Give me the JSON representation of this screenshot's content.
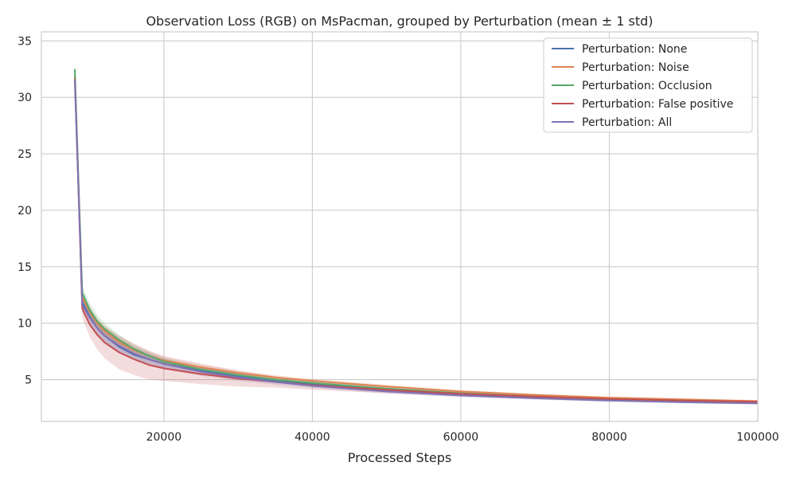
{
  "chart_data": {
    "type": "line",
    "title": "Observation Loss (RGB) on MsPacman, grouped by Perturbation (mean ± 1 std)",
    "xlabel": "Processed Steps",
    "ylabel": "",
    "xlim": [
      3500,
      100000
    ],
    "ylim": [
      1.3,
      35.8
    ],
    "x_ticks": [
      20000,
      40000,
      60000,
      80000,
      100000
    ],
    "x_tick_labels": [
      "20000",
      "40000",
      "60000",
      "80000",
      "100000"
    ],
    "y_ticks": [
      5,
      10,
      15,
      20,
      25,
      30,
      35
    ],
    "y_tick_labels": [
      "5",
      "10",
      "15",
      "20",
      "25",
      "30",
      "35"
    ],
    "grid": true,
    "legend_position": "top-right",
    "x": [
      8000,
      8500,
      9000,
      10000,
      11000,
      12000,
      14000,
      16000,
      18000,
      20000,
      25000,
      30000,
      35000,
      40000,
      50000,
      60000,
      70000,
      80000,
      90000,
      100000
    ],
    "series": [
      {
        "name": "Perturbation: None",
        "color": "#4c72b0",
        "values": [
          31.8,
          22.0,
          11.9,
          10.6,
          9.6,
          8.9,
          7.9,
          7.2,
          6.8,
          6.4,
          5.8,
          5.3,
          4.9,
          4.6,
          4.1,
          3.7,
          3.4,
          3.2,
          3.05,
          2.95
        ],
        "std": [
          0.5,
          0.8,
          0.5,
          0.5,
          0.5,
          0.5,
          0.5,
          0.45,
          0.4,
          0.35,
          0.3,
          0.25,
          0.2,
          0.2,
          0.15,
          0.15,
          0.12,
          0.12,
          0.1,
          0.1
        ]
      },
      {
        "name": "Perturbation: Noise",
        "color": "#dd8452",
        "values": [
          31.9,
          22.2,
          12.3,
          11.0,
          10.0,
          9.3,
          8.3,
          7.6,
          7.1,
          6.7,
          6.1,
          5.6,
          5.2,
          4.9,
          4.4,
          3.95,
          3.65,
          3.4,
          3.25,
          3.1
        ],
        "std": [
          0.5,
          0.8,
          0.5,
          0.5,
          0.5,
          0.5,
          0.45,
          0.4,
          0.35,
          0.3,
          0.25,
          0.22,
          0.2,
          0.18,
          0.15,
          0.13,
          0.12,
          0.1,
          0.1,
          0.1
        ]
      },
      {
        "name": "Perturbation: Occlusion",
        "color": "#55a868",
        "values": [
          32.5,
          22.6,
          12.7,
          11.2,
          10.2,
          9.5,
          8.5,
          7.7,
          7.1,
          6.6,
          5.9,
          5.4,
          5.0,
          4.7,
          4.2,
          3.8,
          3.5,
          3.25,
          3.1,
          3.0
        ],
        "std": [
          1.0,
          0.9,
          0.6,
          0.6,
          0.55,
          0.5,
          0.45,
          0.4,
          0.35,
          0.3,
          0.25,
          0.22,
          0.2,
          0.18,
          0.15,
          0.13,
          0.12,
          0.1,
          0.1,
          0.1
        ]
      },
      {
        "name": "Perturbation: False positive",
        "color": "#c44e52",
        "values": [
          31.6,
          21.8,
          11.3,
          9.9,
          9.0,
          8.3,
          7.4,
          6.8,
          6.3,
          6.0,
          5.5,
          5.1,
          4.8,
          4.5,
          4.1,
          3.75,
          3.5,
          3.3,
          3.15,
          3.05
        ],
        "std": [
          0.8,
          0.9,
          0.8,
          1.1,
          1.3,
          1.4,
          1.5,
          1.4,
          1.3,
          1.1,
          0.9,
          0.7,
          0.5,
          0.4,
          0.3,
          0.25,
          0.2,
          0.15,
          0.12,
          0.1
        ]
      },
      {
        "name": "Perturbation: All",
        "color": "#8172b3",
        "values": [
          31.5,
          21.9,
          11.6,
          10.5,
          9.6,
          8.9,
          8.0,
          7.3,
          6.8,
          6.4,
          5.7,
          5.2,
          4.8,
          4.45,
          3.95,
          3.6,
          3.35,
          3.15,
          3.0,
          2.9
        ],
        "std": [
          0.6,
          0.8,
          0.6,
          0.6,
          0.6,
          0.6,
          0.6,
          0.55,
          0.5,
          0.45,
          0.35,
          0.3,
          0.25,
          0.2,
          0.18,
          0.15,
          0.12,
          0.12,
          0.1,
          0.1
        ]
      }
    ]
  }
}
